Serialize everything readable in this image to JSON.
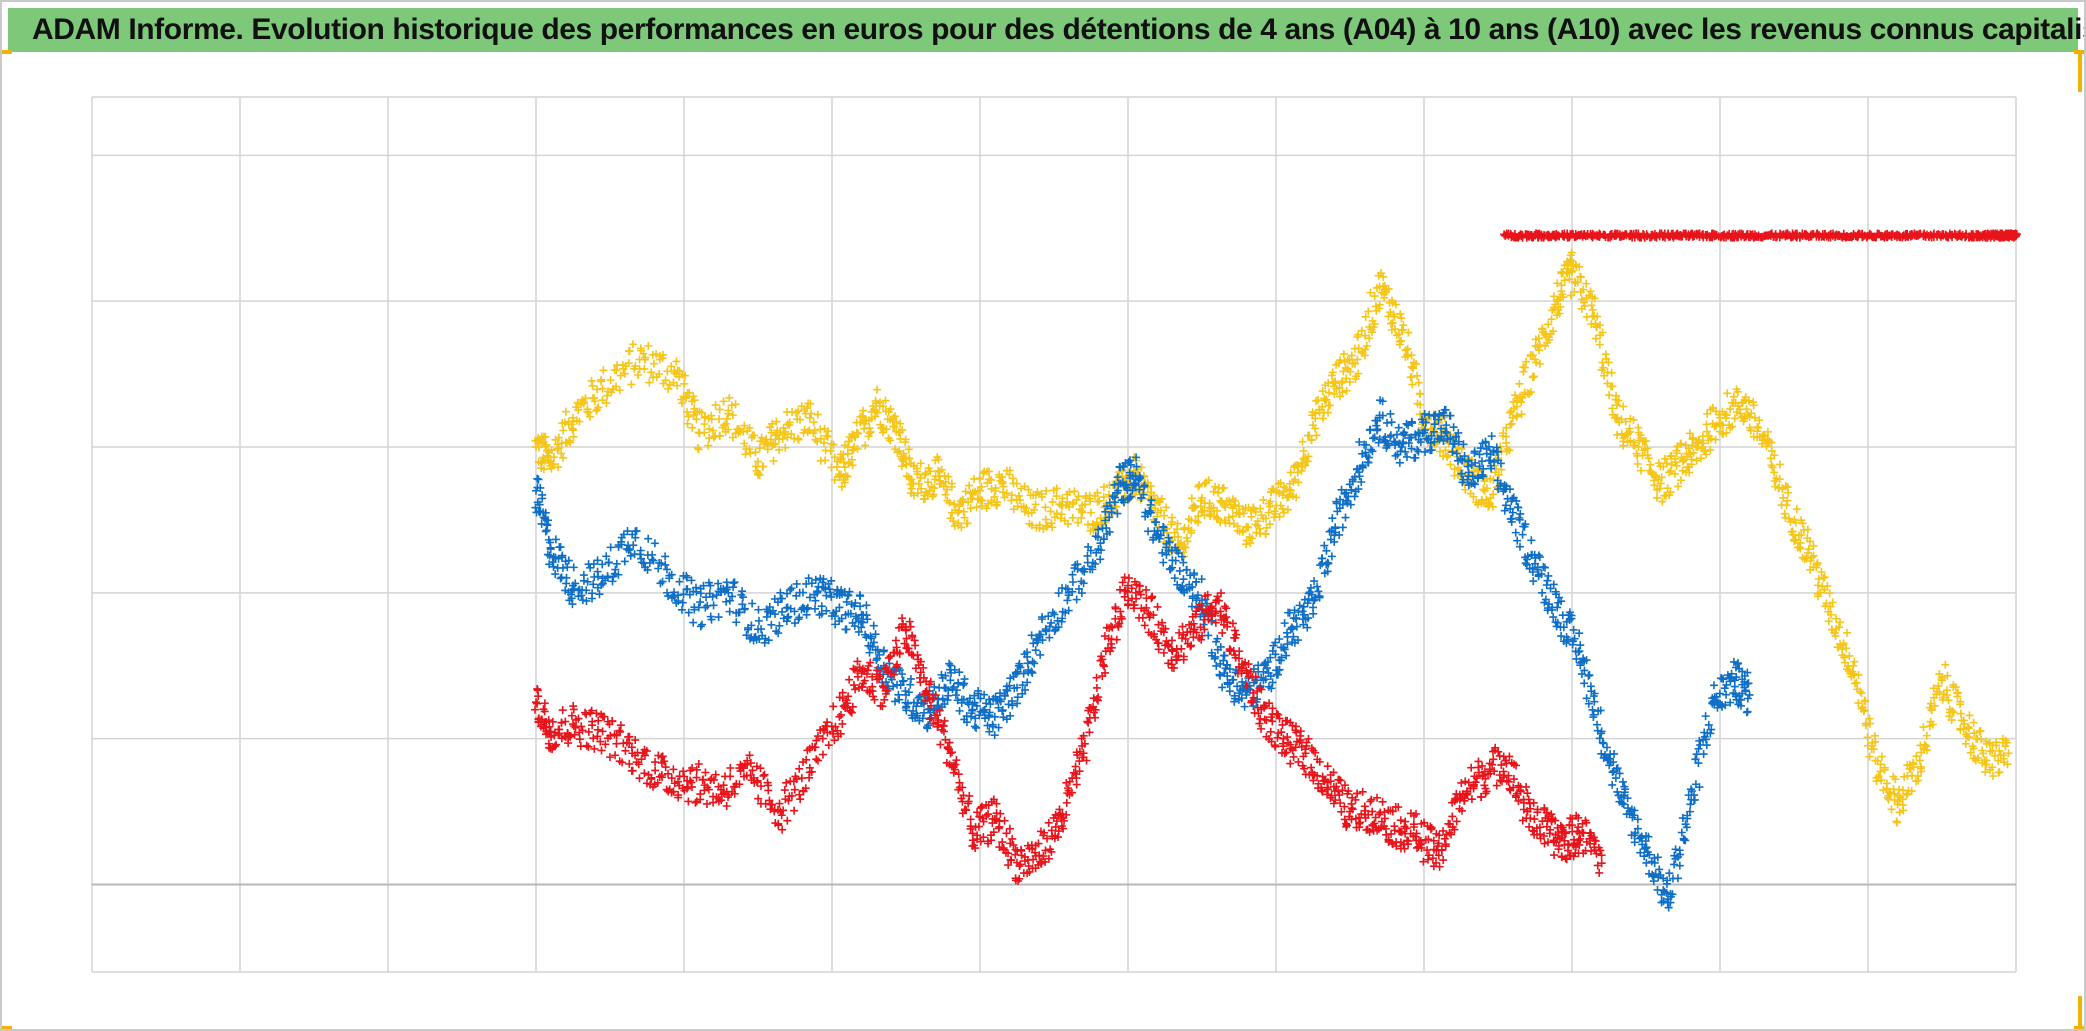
{
  "chart_data": {
    "type": "scatter",
    "title": "ADAM Informe. Evolution historique des performances en euros pour des détentions de 4 ans (A04) à 10 ans (A10) avec les revenus connus capitalisés",
    "xlabel": "",
    "ylabel": "",
    "xlim": [
      0,
      13
    ],
    "ylim": [
      -0.6,
      5.4
    ],
    "x_gridlines": 13,
    "y_gridlines": [
      0,
      1,
      2,
      3,
      4,
      5
    ],
    "legend": "none",
    "marker": "+",
    "colors": {
      "gold": "#f5c518",
      "blue": "#0f6fc6",
      "red": "#e8141b"
    },
    "series": [
      {
        "name": "yellow",
        "color": "#f5c518",
        "x": [
          3.0,
          3.1,
          3.25,
          3.45,
          3.7,
          3.95,
          4.1,
          4.3,
          4.5,
          4.65,
          4.85,
          5.05,
          5.15,
          5.3,
          5.45,
          5.55,
          5.7,
          5.85,
          6.0,
          6.15,
          6.35,
          6.55,
          6.75,
          6.9,
          7.05,
          7.2,
          7.35,
          7.5,
          7.65,
          7.8,
          7.95,
          8.1,
          8.25,
          8.4,
          8.55,
          8.7,
          8.85,
          9.0,
          9.15,
          9.3,
          9.45,
          9.6,
          9.75,
          9.9,
          10.0,
          10.15,
          10.3,
          10.45,
          10.6,
          10.75,
          10.85,
          11.0,
          11.15,
          11.3,
          11.45,
          11.6,
          11.75,
          11.9,
          12.05,
          12.2,
          12.35,
          12.5,
          12.65,
          12.8,
          12.95
        ],
        "y": [
          3.0,
          2.9,
          3.2,
          3.4,
          3.6,
          3.5,
          3.1,
          3.25,
          2.9,
          3.1,
          3.2,
          2.8,
          3.0,
          3.3,
          3.1,
          2.75,
          2.8,
          2.55,
          2.7,
          2.75,
          2.55,
          2.6,
          2.55,
          2.65,
          2.8,
          2.55,
          2.3,
          2.65,
          2.6,
          2.45,
          2.55,
          2.7,
          3.15,
          3.45,
          3.6,
          4.1,
          3.8,
          3.2,
          3.05,
          2.8,
          2.65,
          3.2,
          3.6,
          4.0,
          4.2,
          3.9,
          3.2,
          3.0,
          2.75,
          2.9,
          3.0,
          3.2,
          3.3,
          3.05,
          2.6,
          2.3,
          1.85,
          1.5,
          0.85,
          0.55,
          0.85,
          1.4,
          1.1,
          0.85,
          0.9
        ]
      },
      {
        "name": "blue",
        "color": "#0f6fc6",
        "x": [
          3.0,
          3.1,
          3.25,
          3.45,
          3.65,
          3.9,
          4.1,
          4.3,
          4.5,
          4.7,
          4.9,
          5.05,
          5.2,
          5.35,
          5.5,
          5.65,
          5.8,
          5.95,
          6.1,
          6.25,
          6.4,
          6.6,
          6.8,
          6.95,
          7.05,
          7.2,
          7.35,
          7.5,
          7.65,
          7.8,
          7.95,
          8.1,
          8.25,
          8.4,
          8.55,
          8.7,
          8.85,
          9.0,
          9.15,
          9.3,
          9.45,
          9.6,
          9.75,
          9.9,
          10.05,
          10.2,
          10.35,
          10.5,
          10.65,
          10.8,
          10.95,
          11.1,
          11.2
        ],
        "y": [
          2.7,
          2.3,
          2.05,
          2.1,
          2.4,
          2.1,
          1.9,
          2.0,
          1.75,
          1.9,
          2.0,
          1.9,
          1.85,
          1.5,
          1.3,
          1.2,
          1.4,
          1.2,
          1.15,
          1.35,
          1.7,
          2.0,
          2.3,
          2.75,
          2.8,
          2.4,
          2.15,
          1.95,
          1.45,
          1.3,
          1.45,
          1.75,
          1.9,
          2.45,
          2.85,
          3.2,
          3.0,
          3.1,
          3.15,
          2.8,
          2.95,
          2.55,
          2.2,
          1.9,
          1.6,
          1.05,
          0.55,
          0.25,
          -0.1,
          0.55,
          1.25,
          1.4,
          1.3
        ]
      },
      {
        "name": "red",
        "color": "#e8141b",
        "x": [
          3.0,
          3.1,
          3.25,
          3.45,
          3.65,
          3.85,
          4.05,
          4.25,
          4.45,
          4.65,
          4.85,
          5.05,
          5.2,
          5.35,
          5.5,
          5.65,
          5.8,
          5.95,
          6.1,
          6.25,
          6.4,
          6.55,
          6.7,
          6.85,
          7.0,
          7.15,
          7.3,
          7.45,
          7.6,
          7.75,
          7.9,
          8.05,
          8.2,
          8.35,
          8.5,
          8.65,
          8.8,
          8.95,
          9.1,
          9.25,
          9.4,
          9.55,
          9.7,
          9.85,
          9.95,
          10.05,
          10.2
        ],
        "y": [
          1.25,
          1.05,
          1.1,
          1.05,
          0.9,
          0.75,
          0.7,
          0.65,
          0.75,
          0.5,
          0.8,
          1.15,
          1.45,
          1.35,
          1.75,
          1.3,
          0.9,
          0.35,
          0.45,
          0.15,
          0.2,
          0.45,
          0.9,
          1.6,
          2.05,
          1.85,
          1.6,
          1.75,
          1.95,
          1.55,
          1.2,
          1.0,
          0.9,
          0.7,
          0.5,
          0.5,
          0.4,
          0.35,
          0.2,
          0.6,
          0.75,
          0.85,
          0.5,
          0.35,
          0.3,
          0.35,
          0.2
        ]
      },
      {
        "name": "flat",
        "color": "#e8141b",
        "x": [
          9.55,
          9.9,
          10.3,
          10.7,
          11.1,
          11.5,
          11.9,
          12.3,
          12.7,
          12.9,
          13.0
        ],
        "y": [
          4.45,
          4.45,
          4.45,
          4.45,
          4.45,
          4.45,
          4.45,
          4.45,
          4.45,
          4.45,
          4.45
        ]
      }
    ]
  }
}
